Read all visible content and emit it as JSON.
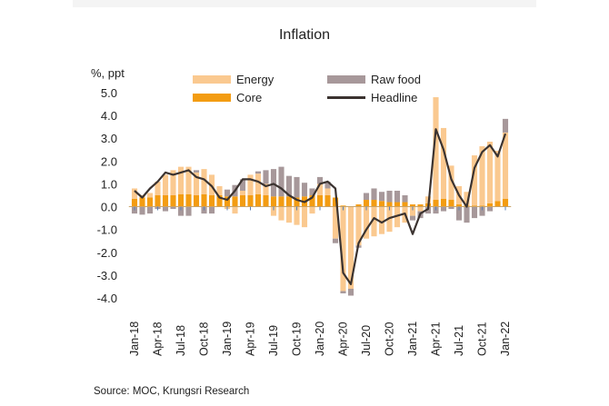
{
  "chart_data": {
    "type": "bar",
    "subtype": "stacked-bar-with-line",
    "title": "Inflation",
    "ylabel": "%, ppt",
    "xlabel": "",
    "ylim": [
      -4.0,
      5.0
    ],
    "yticks": [
      "5.0",
      "4.0",
      "3.0",
      "2.0",
      "1.0",
      "0.0",
      "-1.0",
      "-2.0",
      "-3.0",
      "-4.0"
    ],
    "ytick_values": [
      5,
      4,
      3,
      2,
      1,
      0,
      -1,
      -2,
      -3,
      -4
    ],
    "xtick_labels": [
      "Jan-18",
      "Apr-18",
      "Jul-18",
      "Oct-18",
      "Jan-19",
      "Apr-19",
      "Jul-19",
      "Oct-19",
      "Jan-20",
      "Apr-20",
      "Jul-20",
      "Oct-20",
      "Jan-21",
      "Apr-21",
      "Jul-21",
      "Oct-21",
      "Jan-22"
    ],
    "grid": false,
    "legend_position": "top",
    "categories": [
      "Jan-18",
      "Feb-18",
      "Mar-18",
      "Apr-18",
      "May-18",
      "Jun-18",
      "Jul-18",
      "Aug-18",
      "Sep-18",
      "Oct-18",
      "Nov-18",
      "Dec-18",
      "Jan-19",
      "Feb-19",
      "Mar-19",
      "Apr-19",
      "May-19",
      "Jun-19",
      "Jul-19",
      "Aug-19",
      "Sep-19",
      "Oct-19",
      "Nov-19",
      "Dec-19",
      "Jan-20",
      "Feb-20",
      "Mar-20",
      "Apr-20",
      "May-20",
      "Jun-20",
      "Jul-20",
      "Aug-20",
      "Sep-20",
      "Oct-20",
      "Nov-20",
      "Dec-20",
      "Jan-21",
      "Feb-21",
      "Mar-21",
      "Apr-21",
      "May-21",
      "Jun-21",
      "Jul-21",
      "Aug-21",
      "Sep-21",
      "Oct-21",
      "Nov-21",
      "Dec-21",
      "Jan-22"
    ],
    "series": [
      {
        "name": "Core",
        "kind": "bar",
        "color": "#f39c12",
        "values": [
          0.35,
          0.4,
          0.4,
          0.5,
          0.5,
          0.5,
          0.55,
          0.55,
          0.5,
          0.55,
          0.5,
          0.5,
          0.45,
          0.45,
          0.5,
          0.5,
          0.55,
          0.5,
          0.45,
          0.45,
          0.45,
          0.4,
          0.45,
          0.5,
          0.5,
          0.5,
          0.4,
          0.05,
          0.0,
          0.1,
          0.3,
          0.3,
          0.25,
          0.2,
          0.2,
          0.2,
          0.1,
          0.1,
          0.15,
          0.3,
          0.35,
          0.3,
          0.1,
          0.05,
          0.05,
          0.05,
          0.15,
          0.25,
          0.35
        ]
      },
      {
        "name": "Energy",
        "kind": "bar",
        "color": "#fac990",
        "values": [
          0.45,
          0.1,
          0.2,
          0.6,
          0.9,
          1.1,
          1.2,
          1.2,
          1.0,
          1.1,
          0.9,
          0.4,
          -0.1,
          -0.3,
          0.2,
          0.9,
          0.9,
          0.5,
          -0.4,
          -0.6,
          -0.7,
          -0.8,
          -0.9,
          -0.3,
          0.5,
          0.3,
          -1.4,
          -3.7,
          -3.6,
          -1.7,
          -1.4,
          -1.3,
          -1.2,
          -1.1,
          -0.9,
          -0.7,
          -0.4,
          -0.2,
          0.3,
          4.5,
          3.1,
          1.5,
          0.8,
          0.6,
          2.2,
          2.6,
          2.7,
          2.2,
          2.9
        ]
      },
      {
        "name": "Raw food",
        "kind": "bar",
        "color": "#a7989a",
        "values": [
          -0.3,
          -0.35,
          -0.3,
          -0.1,
          -0.2,
          -0.1,
          -0.4,
          -0.4,
          0.1,
          -0.3,
          -0.3,
          0.0,
          0.3,
          0.5,
          0.5,
          0.0,
          0.1,
          0.6,
          1.2,
          1.3,
          0.9,
          0.9,
          0.6,
          0.3,
          0.3,
          0.3,
          -0.2,
          -0.1,
          -0.3,
          -0.1,
          0.3,
          0.5,
          0.4,
          0.5,
          0.5,
          0.3,
          -0.2,
          -0.3,
          -0.3,
          -0.3,
          -0.2,
          -0.1,
          -0.6,
          -0.7,
          -0.5,
          -0.4,
          -0.2,
          0.0,
          0.6
        ]
      },
      {
        "name": "Headline",
        "kind": "line",
        "color": "#3b3330",
        "values": [
          0.7,
          0.4,
          0.8,
          1.1,
          1.5,
          1.4,
          1.5,
          1.6,
          1.3,
          1.2,
          0.9,
          0.4,
          0.3,
          0.7,
          1.2,
          1.2,
          1.1,
          0.9,
          1.0,
          0.8,
          0.5,
          0.3,
          0.2,
          0.4,
          1.0,
          1.1,
          0.8,
          -2.9,
          -3.4,
          -1.6,
          -1.0,
          -0.5,
          -0.7,
          -0.5,
          -0.4,
          -0.3,
          -1.2,
          -0.3,
          -0.1,
          3.4,
          2.5,
          1.2,
          0.5,
          0.0,
          1.7,
          2.4,
          2.7,
          2.2,
          3.2
        ]
      }
    ]
  },
  "legend": {
    "energy": "Energy",
    "core": "Core",
    "raw_food": "Raw food",
    "headline": "Headline"
  },
  "footer": {
    "source": "Source:  MOC, Krungsri Research"
  }
}
